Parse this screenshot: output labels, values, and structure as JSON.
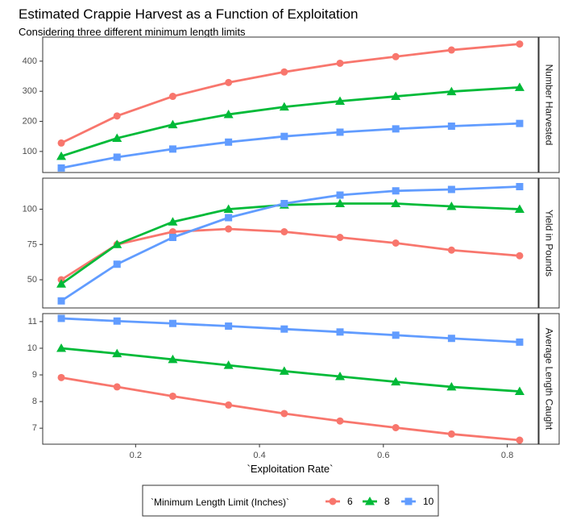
{
  "chart_data": {
    "type": "line",
    "title": "Estimated Crappie Harvest as a Function of Exploitation",
    "subtitle": "Considering three different minimum length limits",
    "xlabel": "`Exploitation Rate`",
    "x": [
      0.08,
      0.17,
      0.26,
      0.35,
      0.44,
      0.53,
      0.62,
      0.71,
      0.82
    ],
    "xlim": [
      0.05,
      0.85
    ],
    "xticks": [
      0.2,
      0.4,
      0.6,
      0.8
    ],
    "xtick_labels": [
      "0.2",
      "0.4",
      "0.6",
      "0.8"
    ],
    "grid": false,
    "legend": {
      "title": "`Minimum Length Limit (Inches)`",
      "position": "bottom",
      "entries": [
        {
          "label": "6",
          "color": "#F8766D",
          "shape": "circle"
        },
        {
          "label": "8",
          "color": "#00BA38",
          "shape": "triangle"
        },
        {
          "label": "10",
          "color": "#619CFF",
          "shape": "square"
        }
      ]
    },
    "panels": [
      {
        "strip": "Number Harvested",
        "ylim": [
          30,
          480
        ],
        "yticks": [
          100,
          200,
          300,
          400
        ],
        "ytick_labels": [
          "100",
          "200",
          "300",
          "400"
        ],
        "series": [
          {
            "name": "6",
            "values": [
              128,
              218,
              283,
              329,
              364,
              393,
              415,
              437,
              457
            ]
          },
          {
            "name": "8",
            "values": [
              84,
              144,
              189,
              223,
              248,
              267,
              283,
              299,
              313
            ]
          },
          {
            "name": "10",
            "values": [
              45,
              81,
              108,
              131,
              150,
              164,
              175,
              184,
              193
            ]
          }
        ]
      },
      {
        "strip": "Yield in Pounds",
        "ylim": [
          30,
          122
        ],
        "yticks": [
          50,
          75,
          100
        ],
        "ytick_labels": [
          "50",
          "75",
          "100"
        ],
        "series": [
          {
            "name": "6",
            "values": [
              50,
              75,
              84,
              86,
              84,
              80,
              76,
              71,
              67
            ]
          },
          {
            "name": "8",
            "values": [
              47,
              75,
              91,
              100,
              103,
              104,
              104,
              102,
              100
            ]
          },
          {
            "name": "10",
            "values": [
              35,
              61,
              80,
              94,
              104,
              110,
              113,
              114,
              116
            ]
          }
        ]
      },
      {
        "strip": "Average Length Caught",
        "ylim": [
          6.4,
          11.3
        ],
        "yticks": [
          7,
          8,
          9,
          10,
          11
        ],
        "ytick_labels": [
          "7",
          "8",
          "9",
          "10",
          "11"
        ],
        "series": [
          {
            "name": "6",
            "values": [
              8.9,
              8.55,
              8.2,
              7.87,
              7.55,
              7.27,
              7.02,
              6.78,
              6.55
            ]
          },
          {
            "name": "8",
            "values": [
              10.0,
              9.8,
              9.58,
              9.36,
              9.14,
              8.94,
              8.74,
              8.55,
              8.38
            ]
          },
          {
            "name": "10",
            "values": [
              11.12,
              11.02,
              10.93,
              10.83,
              10.72,
              10.61,
              10.49,
              10.37,
              10.23
            ]
          }
        ]
      }
    ]
  }
}
